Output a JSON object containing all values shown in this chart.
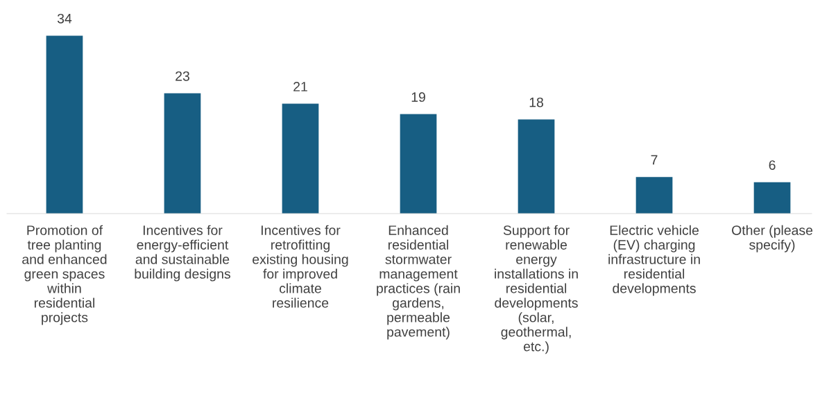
{
  "chart_data": {
    "type": "bar",
    "categories": [
      "Promotion of\ntree planting\nand enhanced\ngreen spaces\nwithin\nresidential\nprojects",
      "Incentives for\nenergy-efficient\nand sustainable\nbuilding designs",
      "Incentives for\nretrofitting\nexisting housing\nfor improved\nclimate\nresilience",
      "Enhanced\nresidential\nstormwater\nmanagement\npractices (rain\ngardens,\npermeable\npavement)",
      "Support for\nrenewable\nenergy\ninstallations in\nresidential\ndevelopments\n(solar,\ngeothermal,\netc.)",
      "Electric vehicle\n(EV) charging\ninfrastructure in\nresidential\ndevelopments",
      "Other (please\nspecify)"
    ],
    "values": [
      34,
      23,
      21,
      19,
      18,
      7,
      6
    ],
    "color": "#175e83",
    "data_labels": true,
    "tick_labels": "x",
    "grid": false,
    "legend": false
  }
}
